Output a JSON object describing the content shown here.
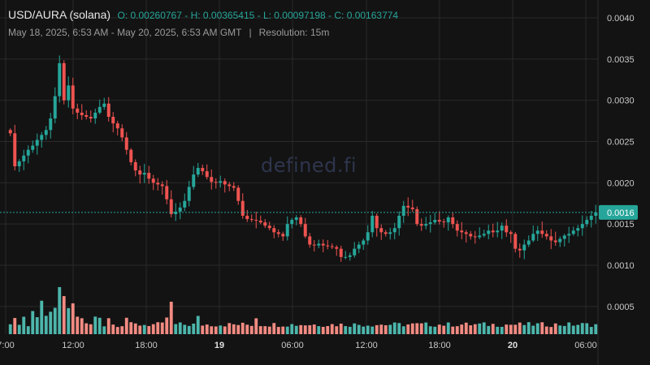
{
  "header": {
    "title": "USD/AURA (solana)",
    "ohlc": "O: 0.00260767 - H: 0.00365415 - L: 0.00097198 - C: 0.00163774",
    "range": "May 18, 2025, 6:53 AM - May 20, 2025, 6:53 AM GMT",
    "separator": "|",
    "resolution": "Resolution: 15m"
  },
  "watermark": "defined.fi",
  "colors": {
    "background": "#131313",
    "grid": "#2a2a2a",
    "up": "#26a69a",
    "down": "#ef5350",
    "up_volume": "#4db6ac",
    "down_volume": "#f28b82",
    "price_line": "#26a69a"
  },
  "chart_data": {
    "type": "candlestick",
    "title": "USD/AURA (solana)",
    "y_axis": {
      "position": "right",
      "ticks": [
        "0.0040",
        "0.0035",
        "0.0030",
        "0.0025",
        "0.0020",
        "0.0015",
        "0.0010",
        "0.0005"
      ],
      "range": [
        0.0,
        0.0041
      ]
    },
    "x_axis": {
      "ticks": [
        {
          "label": "7:00",
          "bold": false
        },
        {
          "label": "12:00",
          "bold": false
        },
        {
          "label": "18:00",
          "bold": false
        },
        {
          "label": "19",
          "bold": true
        },
        {
          "label": "06:00",
          "bold": false
        },
        {
          "label": "12:00",
          "bold": false
        },
        {
          "label": "18:00",
          "bold": false
        },
        {
          "label": "20",
          "bold": true
        },
        {
          "label": "06:00",
          "bold": false
        }
      ]
    },
    "last_price": {
      "label": "0.0016",
      "value": 0.00164
    },
    "grid": true,
    "close_series": [
      [
        0.0026,
        0.0022,
        0.00226,
        0.00233,
        0.0024,
        0.00245,
        0.00252,
        0.00258,
        0.00264,
        0.00278,
        0.00305,
        0.00345,
        0.003,
        0.00318,
        0.0029,
        0.00285,
        0.00282,
        0.0028,
        0.00278,
        0.00285,
        0.00292,
        0.00296,
        0.0028,
        0.00272,
        0.00266,
        0.00255,
        0.0024,
        0.00225,
        0.00215,
        0.0021,
        0.00212,
        0.00205,
        0.002,
        0.00198,
        0.00196,
        0.0018,
        0.00162,
        0.00165,
        0.0017,
        0.00178,
        0.00195,
        0.0021,
        0.00218,
        0.00214,
        0.00207,
        0.00201,
        0.002,
        0.00202,
        0.00198,
        0.00196
      ],
      [
        0.00194,
        0.00178,
        0.0016,
        0.00156,
        0.00155,
        0.00154,
        0.00152,
        0.00148,
        0.00145,
        0.0014,
        0.00138,
        0.00135,
        0.0015,
        0.00155,
        0.00158,
        0.0015,
        0.00135,
        0.00125,
        0.00124,
        0.00126,
        0.00124,
        0.00123,
        0.00122,
        0.0012,
        0.0011,
        0.0011,
        0.00112,
        0.0012,
        0.00125,
        0.0013,
        0.0014,
        0.0016,
        0.00145,
        0.0014,
        0.00138,
        0.0014,
        0.00145,
        0.0016,
        0.00172,
        0.0017,
        0.00168,
        0.0015,
        0.00148,
        0.0015,
        0.00152,
        0.00155,
        0.00153,
        0.00152,
        0.00158,
        0.0015
      ],
      [
        0.00142,
        0.0014,
        0.00138,
        0.00135,
        0.00134,
        0.00136,
        0.00138,
        0.00142,
        0.0014,
        0.00142,
        0.00148,
        0.0014,
        0.00138,
        0.0012,
        0.00118,
        0.00125,
        0.0013,
        0.00138,
        0.00142,
        0.00138,
        0.00135,
        0.0013,
        0.00128,
        0.00132,
        0.00136,
        0.00138,
        0.00142,
        0.00145,
        0.0015,
        0.00155,
        0.0016,
        0.00164
      ]
    ],
    "volume_series": [
      1,
      2,
      1,
      2,
      1,
      3,
      2,
      4,
      2,
      3,
      3,
      6,
      5,
      3,
      4,
      2,
      2,
      1,
      1,
      2,
      2,
      1,
      2,
      1,
      1,
      1,
      2,
      1,
      1,
      1,
      1,
      1,
      1,
      1,
      1,
      2,
      4,
      1,
      1,
      1,
      1,
      1,
      2,
      1,
      1,
      1,
      1,
      1,
      1,
      1,
      1,
      1,
      1,
      1,
      1,
      2,
      1,
      1,
      1,
      1,
      1,
      1,
      1,
      1,
      1,
      1,
      1,
      1,
      1,
      1,
      1,
      1,
      1,
      1,
      1,
      1,
      1,
      1,
      1,
      1,
      1,
      1,
      1,
      1,
      1,
      1,
      1,
      1,
      1,
      1,
      1,
      1,
      1,
      1,
      1,
      1,
      1,
      1,
      1,
      1,
      1,
      1,
      1,
      1,
      1,
      1,
      1,
      1,
      1,
      1,
      1,
      1,
      1,
      1,
      1,
      1,
      1,
      1,
      1,
      1,
      1,
      1,
      1,
      1,
      1,
      1,
      1,
      1,
      1,
      1,
      1,
      1
    ]
  }
}
